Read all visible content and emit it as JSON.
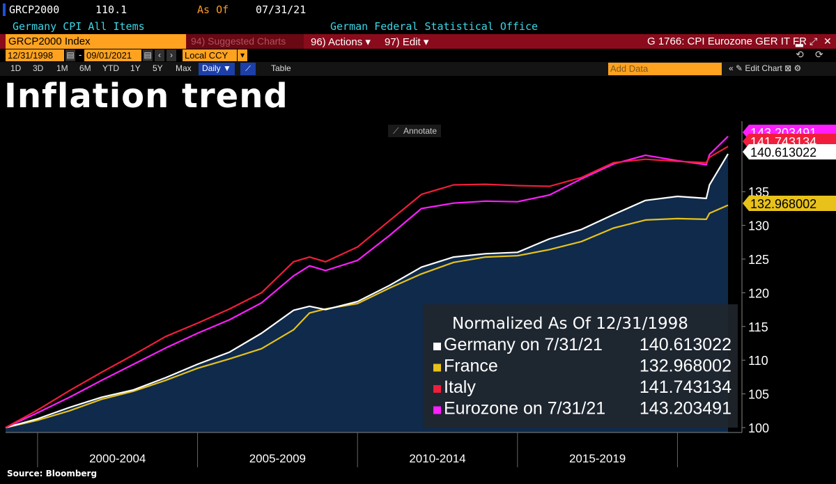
{
  "header": {
    "ticker": "GRCP2000",
    "price": "110.1",
    "as_of_label": "As Of",
    "as_of_date": "07/31/21",
    "description": "Germany CPI All Items",
    "source_name": "German Federal Statistical Office"
  },
  "toolbar": {
    "index_name": "GRCP2000 Index",
    "suggested_charts": "94) Suggested Charts",
    "actions": "96) Actions ▾",
    "edit": "97) Edit ▾",
    "chart_code": "G 1766: CPI Eurozone GER IT FR"
  },
  "range": {
    "start_date": "12/31/1998",
    "end_date": "09/01/2021",
    "currency": "Local CCY",
    "currency_arrow": "▾"
  },
  "periods": [
    "1D",
    "3D",
    "1M",
    "6M",
    "YTD",
    "1Y",
    "5Y",
    "Max"
  ],
  "controls": {
    "frequency": "Daily ▼",
    "table_label": "Table",
    "add_data_placeholder": "Add Data",
    "edit_chart": "Edit Chart"
  },
  "title": "Inflation trend",
  "annotate_label": "Annotate",
  "legend": {
    "title": "Normalized As Of 12/31/1998",
    "entries": [
      {
        "label": "Germany on 7/31/21",
        "value": "140.613022",
        "color": "#ffffff"
      },
      {
        "label": "France",
        "value": "132.968002",
        "color": "#e8c21a"
      },
      {
        "label": "Italy",
        "value": "141.743134",
        "color": "#f01e3c"
      },
      {
        "label": "Eurozone on 7/31/21",
        "value": "143.203491",
        "color": "#ff1eff"
      }
    ]
  },
  "source_note": "Source: Bloomberg",
  "chart_data": {
    "type": "line",
    "title": "Inflation trend",
    "subtitle": "Normalized As Of 12/31/1998",
    "x_label_groups": [
      "2000-2004",
      "2005-2009",
      "2010-2014",
      "2015-2019"
    ],
    "x": [
      1999,
      2000,
      2001,
      2002,
      2003,
      2004,
      2005,
      2006,
      2007,
      2008,
      2008.5,
      2009,
      2010,
      2011,
      2012,
      2013,
      2014,
      2015,
      2016,
      2017,
      2018,
      2019,
      2020,
      2020.9,
      2021,
      2021.58
    ],
    "ylim": [
      98,
      145
    ],
    "yticks": [
      100,
      105,
      110,
      115,
      120,
      125,
      130,
      135
    ],
    "series": [
      {
        "name": "Germany",
        "color": "#ffffff",
        "area_fill": "#0f2a4a",
        "last_value": "140.613022",
        "values": [
          100,
          101.3,
          103.0,
          104.5,
          105.6,
          107.4,
          109.4,
          111.2,
          114.0,
          117.4,
          118.0,
          117.5,
          118.7,
          121.1,
          123.8,
          125.3,
          125.8,
          126.0,
          128.0,
          129.4,
          131.6,
          133.7,
          134.3,
          134.0,
          136.0,
          140.6
        ]
      },
      {
        "name": "France",
        "color": "#e8c21a",
        "last_value": "132.968002",
        "values": [
          100,
          101.1,
          102.5,
          104.2,
          105.4,
          107.0,
          108.8,
          110.2,
          111.7,
          114.5,
          117.0,
          117.6,
          118.4,
          120.7,
          122.8,
          124.5,
          125.3,
          125.5,
          126.4,
          127.6,
          129.6,
          130.8,
          131.0,
          130.9,
          131.8,
          133.0
        ]
      },
      {
        "name": "Italy",
        "color": "#f01e3c",
        "last_value": "141.743134",
        "values": [
          100,
          102.6,
          105.5,
          108.2,
          110.8,
          113.5,
          115.5,
          117.6,
          120.0,
          124.6,
          125.3,
          124.6,
          126.8,
          130.7,
          134.6,
          136.0,
          136.1,
          135.9,
          135.8,
          137.1,
          139.3,
          139.8,
          139.5,
          139.3,
          140.1,
          141.7
        ]
      },
      {
        "name": "Eurozone",
        "color": "#ff1eff",
        "last_value": "143.203491",
        "values": [
          100,
          102.2,
          104.5,
          107.0,
          109.4,
          111.8,
          114.0,
          116.0,
          118.5,
          122.5,
          124.0,
          123.3,
          124.8,
          128.5,
          132.5,
          133.3,
          133.6,
          133.5,
          134.5,
          136.9,
          139.1,
          140.4,
          139.6,
          139.0,
          140.5,
          143.2
        ]
      }
    ]
  }
}
